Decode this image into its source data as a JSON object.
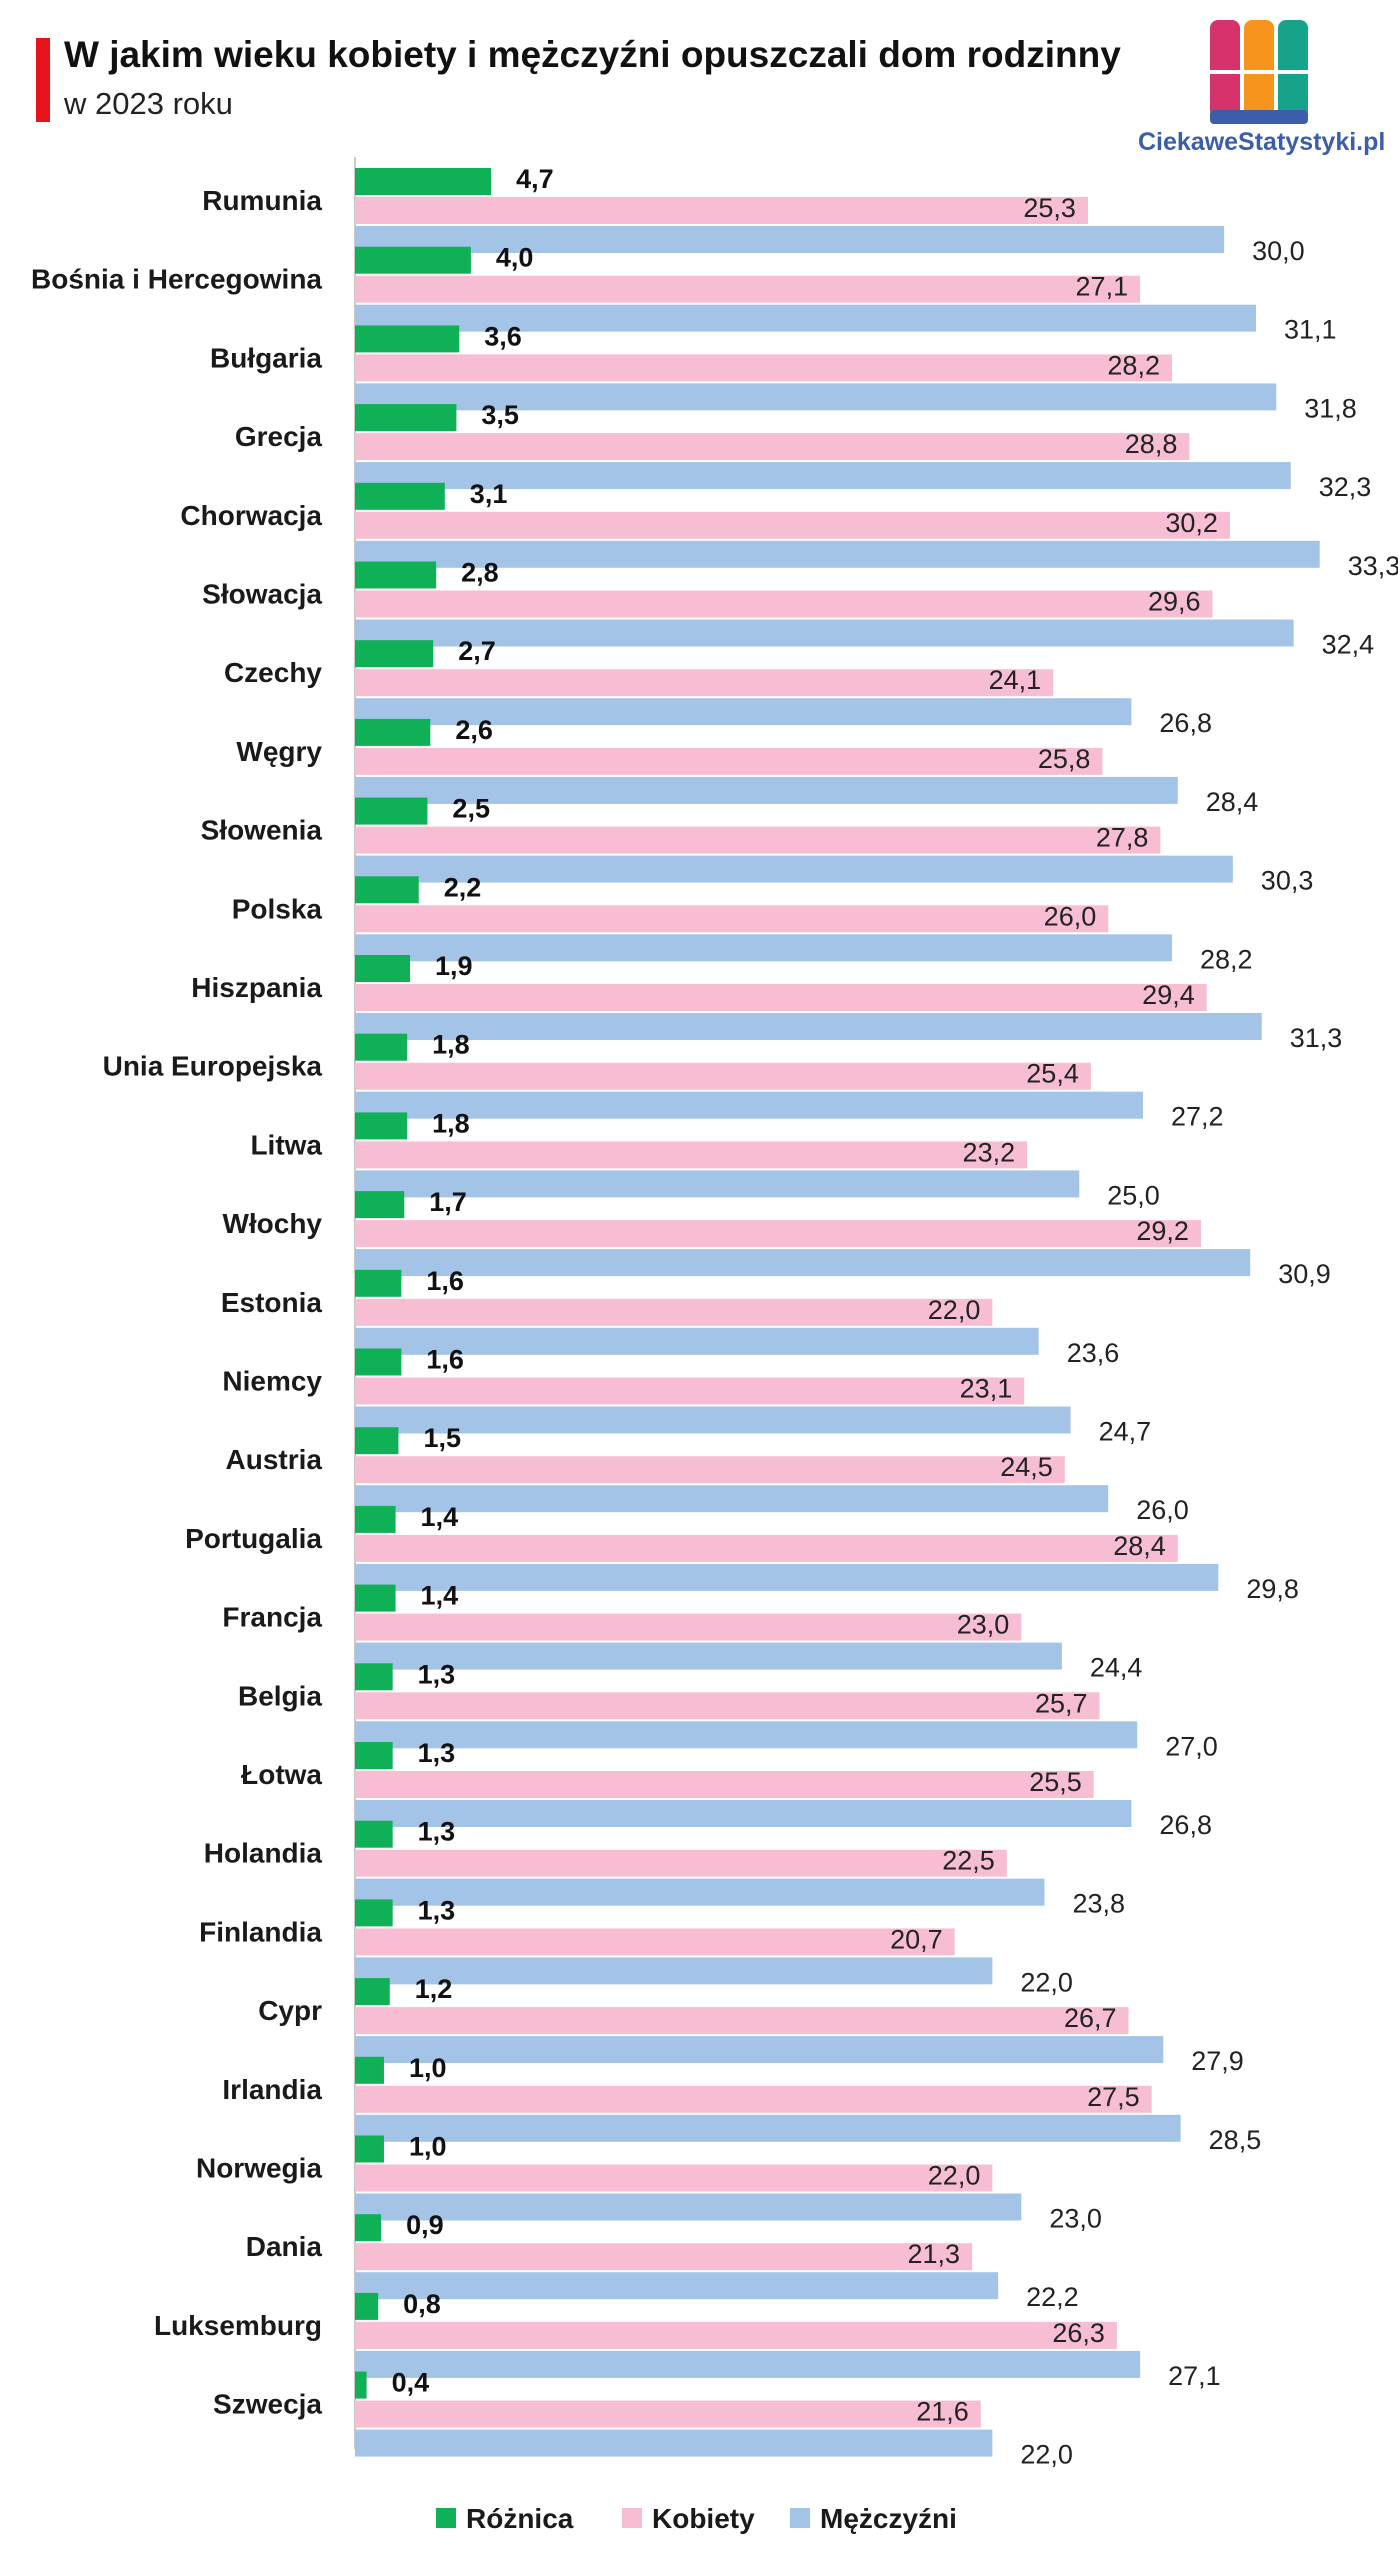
{
  "header": {
    "title": "W jakim wieku kobiety i mężczyźni opuszczali dom rodzinny",
    "subtitle": "w 2023 roku"
  },
  "branding": {
    "site": "CiekaweStatystyki.pl",
    "logo_icon": "bar-chart-logo-icon",
    "logo_colors": [
      "#d6336c",
      "#f7941d",
      "#16a38a",
      "#3c5ea8"
    ]
  },
  "colors": {
    "title_accent": "#e8141b",
    "difference": "#10b057",
    "women": "#f7bdd3",
    "men": "#a3c4e6",
    "axis": "#c8c8c8"
  },
  "chart_data": {
    "type": "bar",
    "orientation": "horizontal",
    "title": "W jakim wieku kobiety i mężczyźni opuszczali dom rodzinny",
    "subtitle": "w 2023 roku",
    "xlabel": "",
    "ylabel": "",
    "xlim": [
      0,
      34
    ],
    "grid": false,
    "legend_position": "bottom",
    "categories": [
      "Rumunia",
      "Bośnia i Hercegowina",
      "Bułgaria",
      "Grecja",
      "Chorwacja",
      "Słowacja",
      "Czechy",
      "Węgry",
      "Słowenia",
      "Polska",
      "Hiszpania",
      "Unia Europejska",
      "Litwa",
      "Włochy",
      "Estonia",
      "Niemcy",
      "Austria",
      "Portugalia",
      "Francja",
      "Belgia",
      "Łotwa",
      "Holandia",
      "Finlandia",
      "Cypr",
      "Irlandia",
      "Norwegia",
      "Dania",
      "Luksemburg",
      "Szwecja"
    ],
    "series": [
      {
        "name": "Różnica",
        "values": [
          4.7,
          4.0,
          3.6,
          3.5,
          3.1,
          2.8,
          2.7,
          2.6,
          2.5,
          2.2,
          1.9,
          1.8,
          1.8,
          1.7,
          1.6,
          1.6,
          1.5,
          1.4,
          1.4,
          1.3,
          1.3,
          1.3,
          1.3,
          1.2,
          1.0,
          1.0,
          0.9,
          0.8,
          0.4
        ]
      },
      {
        "name": "Kobiety",
        "values": [
          25.3,
          27.1,
          28.2,
          28.8,
          30.2,
          29.6,
          24.1,
          25.8,
          27.8,
          26.0,
          29.4,
          25.4,
          23.2,
          29.2,
          22.0,
          23.1,
          24.5,
          28.4,
          23.0,
          25.7,
          25.5,
          22.5,
          20.7,
          26.7,
          27.5,
          22.0,
          21.3,
          26.3,
          21.6
        ]
      },
      {
        "name": "Mężczyźni",
        "values": [
          30.0,
          31.1,
          31.8,
          32.3,
          33.3,
          32.4,
          26.8,
          28.4,
          30.3,
          28.2,
          31.3,
          27.2,
          25.0,
          30.9,
          23.6,
          24.7,
          26.0,
          29.8,
          24.4,
          27.0,
          26.8,
          23.8,
          22.0,
          27.9,
          28.5,
          23.0,
          22.2,
          27.1,
          22.0
        ]
      }
    ],
    "labels": {
      "Różnica": [
        "4,7",
        "4,0",
        "3,6",
        "3,5",
        "3,1",
        "2,8",
        "2,7",
        "2,6",
        "2,5",
        "2,2",
        "1,9",
        "1,8",
        "1,8",
        "1,7",
        "1,6",
        "1,6",
        "1,5",
        "1,4",
        "1,4",
        "1,3",
        "1,3",
        "1,3",
        "1,3",
        "1,2",
        "1,0",
        "1,0",
        "0,9",
        "0,8",
        "0,4"
      ],
      "Kobiety": [
        "25,3",
        "27,1",
        "28,2",
        "28,8",
        "30,2",
        "29,6",
        "24,1",
        "25,8",
        "27,8",
        "26,0",
        "29,4",
        "25,4",
        "23,2",
        "29,2",
        "22,0",
        "23,1",
        "24,5",
        "28,4",
        "23,0",
        "25,7",
        "25,5",
        "22,5",
        "20,7",
        "26,7",
        "27,5",
        "22,0",
        "21,3",
        "26,3",
        "21,6"
      ],
      "Mężczyźni": [
        "30,0",
        "31,1",
        "31,8",
        "32,3",
        "33,3",
        "32,4",
        "26,8",
        "28,4",
        "30,3",
        "28,2",
        "31,3",
        "27,2",
        "25,0",
        "30,9",
        "23,6",
        "24,7",
        "26,0",
        "29,8",
        "24,4",
        "27,0",
        "26,8",
        "23,8",
        "22,0",
        "27,9",
        "28,5",
        "23,0",
        "22,2",
        "27,1",
        "22,0"
      ]
    }
  }
}
